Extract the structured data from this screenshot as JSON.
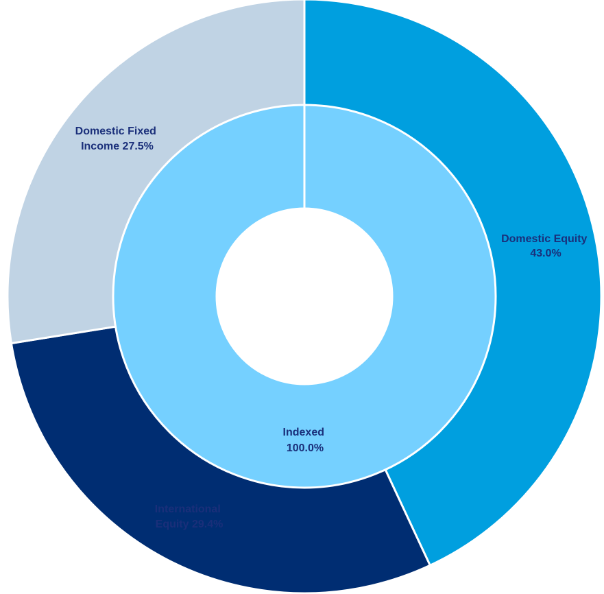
{
  "chart_data": {
    "type": "pie",
    "variant": "nested-donut",
    "title": "",
    "rings": [
      {
        "ring": "outer",
        "slices": [
          {
            "label_line1": "Domestic Equity",
            "label_line2": "43.0%",
            "name": "Domestic Equity",
            "value": 43.0,
            "color": "#009fdf"
          },
          {
            "label_line1": "International",
            "label_line2": "Equity 29.4%",
            "name": "International Equity",
            "value": 29.4,
            "color": "#002d72"
          },
          {
            "label_line1": "Domestic Fixed",
            "label_line2": "Income 27.5%",
            "name": "Domestic Fixed Income",
            "value": 27.5,
            "color": "#c0d3e4"
          }
        ]
      },
      {
        "ring": "inner",
        "slices": [
          {
            "label_line1": "Indexed",
            "label_line2": "100.0%",
            "name": "Indexed",
            "value": 100.0,
            "color": "#75d0ff"
          }
        ]
      }
    ],
    "legend": "none",
    "label_color": "#1a2f7a"
  }
}
